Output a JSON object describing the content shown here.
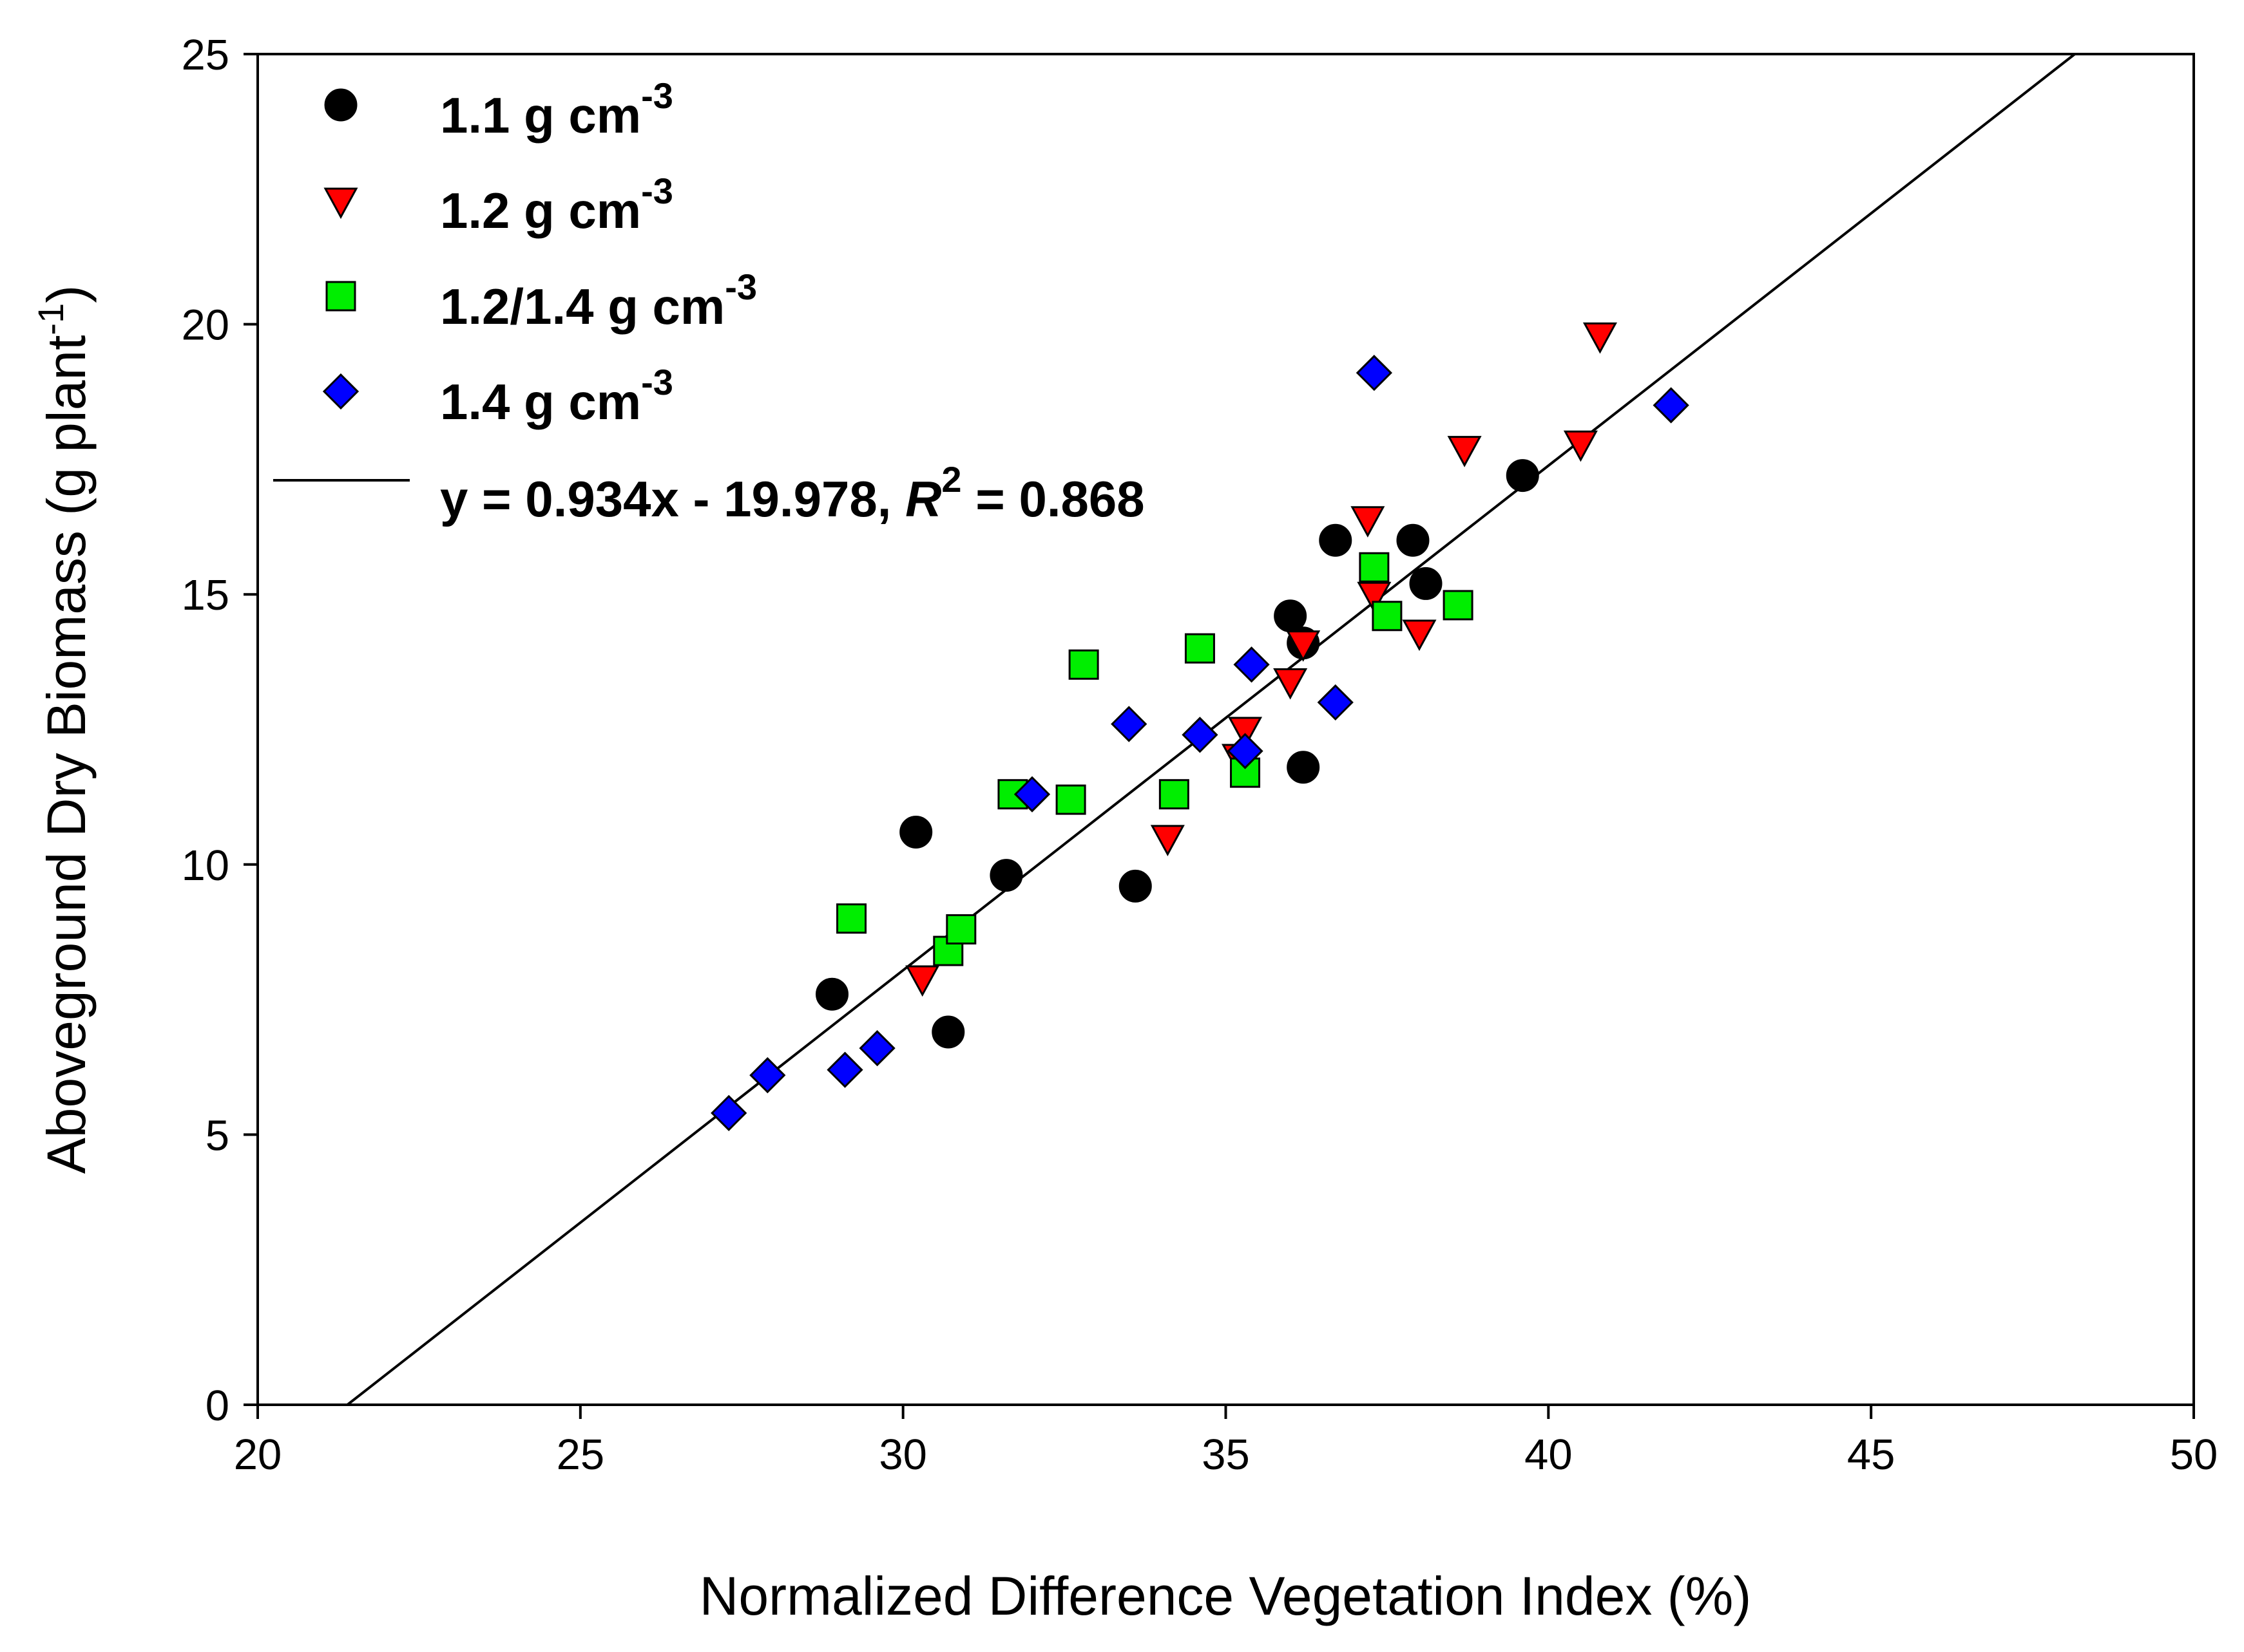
{
  "chart_data": {
    "type": "scatter",
    "title": "",
    "xlabel": "Normalized Difference Vegetation Index (%)",
    "ylabel": {
      "main": "Aboveground Dry Biomass (g plant",
      "sup": "-1",
      "close": ")"
    },
    "xlim": [
      20,
      50
    ],
    "ylim": [
      0,
      25
    ],
    "xticks": [
      20,
      25,
      30,
      35,
      40,
      45,
      50
    ],
    "yticks": [
      0,
      5,
      10,
      15,
      20,
      25
    ],
    "grid": false,
    "legend_position": "top-left",
    "series": [
      {
        "name": "1.1 g cm",
        "name_sup": "-3",
        "marker": "circle",
        "color": "#000000",
        "points": [
          [
            28.9,
            7.6
          ],
          [
            30.2,
            10.6
          ],
          [
            30.7,
            6.9
          ],
          [
            31.6,
            9.8
          ],
          [
            33.6,
            9.6
          ],
          [
            36.0,
            14.6
          ],
          [
            36.2,
            14.1
          ],
          [
            36.2,
            11.8
          ],
          [
            36.7,
            16.0
          ],
          [
            37.9,
            16.0
          ],
          [
            38.1,
            15.2
          ],
          [
            39.6,
            17.2
          ]
        ]
      },
      {
        "name": "1.2 g cm",
        "name_sup": "-3",
        "marker": "triangle-down",
        "color": "#ff0000",
        "points": [
          [
            30.3,
            7.9
          ],
          [
            34.1,
            10.5
          ],
          [
            35.2,
            12.0
          ],
          [
            35.3,
            12.5
          ],
          [
            36.0,
            13.4
          ],
          [
            36.2,
            14.1
          ],
          [
            37.2,
            16.4
          ],
          [
            37.3,
            15.0
          ],
          [
            38.0,
            14.3
          ],
          [
            38.7,
            17.7
          ],
          [
            40.5,
            17.8
          ],
          [
            40.8,
            19.8
          ]
        ]
      },
      {
        "name": "1.2/1.4 g cm",
        "name_sup": "-3",
        "marker": "square",
        "color": "#00ee00",
        "points": [
          [
            29.2,
            9.0
          ],
          [
            30.7,
            8.4
          ],
          [
            30.9,
            8.8
          ],
          [
            31.7,
            11.3
          ],
          [
            32.6,
            11.2
          ],
          [
            32.8,
            13.7
          ],
          [
            34.2,
            11.3
          ],
          [
            34.6,
            14.0
          ],
          [
            35.3,
            11.7
          ],
          [
            37.3,
            15.5
          ],
          [
            37.5,
            14.6
          ],
          [
            38.6,
            14.8
          ]
        ]
      },
      {
        "name": "1.4 g cm",
        "name_sup": "-3",
        "marker": "diamond",
        "color": "#0000ff",
        "points": [
          [
            27.3,
            5.4
          ],
          [
            27.9,
            6.1
          ],
          [
            29.1,
            6.2
          ],
          [
            29.6,
            6.6
          ],
          [
            32.0,
            11.3
          ],
          [
            33.5,
            12.6
          ],
          [
            34.6,
            12.4
          ],
          [
            35.3,
            12.1
          ],
          [
            35.4,
            13.7
          ],
          [
            36.7,
            13.0
          ],
          [
            37.3,
            19.1
          ],
          [
            41.9,
            18.5
          ]
        ]
      }
    ],
    "fit": {
      "slope": 0.934,
      "intercept": -19.978,
      "label": {
        "prefix": "y = 0.934x - 19.978, ",
        "r": "R",
        "r_sup": "2",
        "suffix": " = 0.868"
      }
    }
  }
}
